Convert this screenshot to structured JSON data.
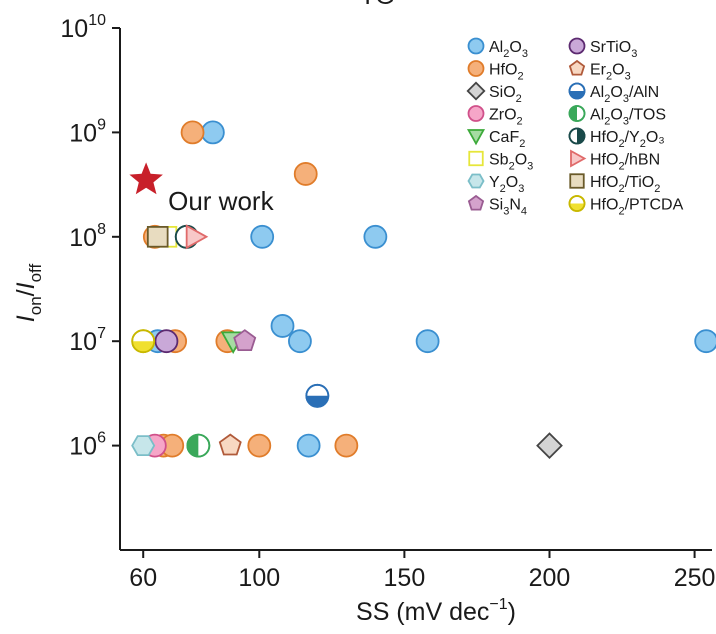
{
  "chart_data": {
    "type": "scatter",
    "title_fragment": "TG",
    "xlabel": "SS (mV dec",
    "xlabel_sup": "−1",
    "xlabel_end": ")",
    "ylabel_main": "I",
    "ylabel_on": "on",
    "ylabel_slash": "/",
    "ylabel_off": "off",
    "x_scale": "linear",
    "y_scale": "log",
    "xlim": [
      52,
      256
    ],
    "ylim_exp": [
      5,
      10
    ],
    "x_ticks": [
      60,
      100,
      150,
      200,
      250
    ],
    "y_ticks": [
      {
        "base": "10",
        "exp": "6",
        "value": 1000000
      },
      {
        "base": "10",
        "exp": "7",
        "value": 10000000
      },
      {
        "base": "10",
        "exp": "8",
        "value": 100000000
      },
      {
        "base": "10",
        "exp": "9",
        "value": 1000000000
      },
      {
        "base": "10",
        "exp": "10",
        "value": 10000000000
      }
    ],
    "grid": false,
    "legend_position": "top-right",
    "annotation": "Our work",
    "highlight": {
      "name": "Our work",
      "marker": "star",
      "color": "#c8202a",
      "x": 61,
      "y": 350000000
    },
    "series": [
      {
        "name": "Al₂O₃",
        "marker": "circle",
        "fill": "#8ecaf0",
        "stroke": "#3a8fd0",
        "points": [
          [
            84,
            1000000000
          ],
          [
            101,
            100000000
          ],
          [
            140,
            100000000
          ],
          [
            108,
            14000000
          ],
          [
            114,
            10000000
          ],
          [
            158,
            10000000
          ],
          [
            254,
            10000000
          ],
          [
            65,
            10000000
          ],
          [
            117,
            1000000
          ]
        ]
      },
      {
        "name": "HfO₂",
        "marker": "circle",
        "fill": "#f5b07a",
        "stroke": "#e07c2a",
        "points": [
          [
            77,
            1000000000
          ],
          [
            116,
            400000000
          ],
          [
            64,
            100000000
          ],
          [
            71,
            10000000
          ],
          [
            89,
            10000000
          ],
          [
            67,
            1000000
          ],
          [
            70,
            1000000
          ],
          [
            100,
            1000000
          ],
          [
            130,
            1000000
          ]
        ]
      },
      {
        "name": "SiO₂",
        "marker": "diamond",
        "fill": "#d4d4d4",
        "stroke": "#444444",
        "points": [
          [
            200,
            1000000
          ]
        ]
      },
      {
        "name": "ZrO₂",
        "marker": "circle",
        "fill": "#f6a6c8",
        "stroke": "#d0508a",
        "points": [
          [
            64,
            1000000
          ]
        ]
      },
      {
        "name": "CaF₂",
        "marker": "triangle-down",
        "fill": "#a6dca2",
        "stroke": "#3daa3a",
        "points": [
          [
            91,
            10000000
          ]
        ]
      },
      {
        "name": "Sb₂O₃",
        "marker": "square",
        "fill": "#ffffff",
        "stroke": "#e6e63a",
        "points": [
          [
            68,
            100000000
          ]
        ]
      },
      {
        "name": "Y₂O₃",
        "marker": "hexagon",
        "fill": "#c6e6ea",
        "stroke": "#7bbec8",
        "points": [
          [
            60,
            1000000
          ]
        ]
      },
      {
        "name": "Si₃N₄",
        "marker": "pentagon",
        "fill": "#d4a2cc",
        "stroke": "#9a5c92",
        "points": [
          [
            95,
            10000000
          ]
        ]
      },
      {
        "name": "SrTiO₃",
        "marker": "circle",
        "fill": "#c9a8d8",
        "stroke": "#5c2a70",
        "points": [
          [
            68,
            10000000
          ]
        ]
      },
      {
        "name": "Er₂O₃",
        "marker": "pentagon",
        "fill": "#f8d8c2",
        "stroke": "#b05a3a",
        "points": [
          [
            90,
            1000000
          ]
        ]
      },
      {
        "name": "Al₂O₃/AlN",
        "marker": "half-circle-bottom",
        "fill": "#2a6fb6",
        "stroke": "#2a6fb6",
        "points": [
          [
            120,
            3000000
          ]
        ]
      },
      {
        "name": "Al₂O₃/TOS",
        "marker": "half-circle-left",
        "fill": "#3aa85a",
        "stroke": "#3aa85a",
        "points": [
          [
            79,
            1000000
          ]
        ]
      },
      {
        "name": "HfO₂/Y₂O₃",
        "marker": "half-circle-right",
        "fill": "#1a4a4a",
        "stroke": "#1a4a4a",
        "points": [
          [
            75,
            100000000
          ]
        ]
      },
      {
        "name": "HfO₂/hBN",
        "marker": "triangle-right",
        "fill": "#f8c8c8",
        "stroke": "#e06a6a",
        "points": [
          [
            78,
            100000000
          ]
        ]
      },
      {
        "name": "HfO₂/TiO₂",
        "marker": "square",
        "fill": "#e8dcc0",
        "stroke": "#6a5a2a",
        "points": [
          [
            65,
            100000000
          ]
        ]
      },
      {
        "name": "HfO₂/PTCDA",
        "marker": "half-circle-bottom-yellow",
        "fill": "#f0e030",
        "stroke": "#c8b800",
        "points": [
          [
            60,
            10000000
          ]
        ]
      }
    ],
    "legend_labels": [
      {
        "base": "Al",
        "sub": "2",
        "mid": "O",
        "sub2": "3",
        "tail": ""
      },
      {
        "base": "HfO",
        "sub": "2",
        "mid": "",
        "sub2": "",
        "tail": ""
      },
      {
        "base": "SiO",
        "sub": "2",
        "mid": "",
        "sub2": "",
        "tail": ""
      },
      {
        "base": "ZrO",
        "sub": "2",
        "mid": "",
        "sub2": "",
        "tail": ""
      },
      {
        "base": "CaF",
        "sub": "2",
        "mid": "",
        "sub2": "",
        "tail": ""
      },
      {
        "base": "Sb",
        "sub": "2",
        "mid": "O",
        "sub2": "3",
        "tail": ""
      },
      {
        "base": "Y",
        "sub": "2",
        "mid": "O",
        "sub2": "3",
        "tail": ""
      },
      {
        "base": "Si",
        "sub": "3",
        "mid": "N",
        "sub2": "4",
        "tail": ""
      },
      {
        "base": "SrTiO",
        "sub": "3",
        "mid": "",
        "sub2": "",
        "tail": ""
      },
      {
        "base": "Er",
        "sub": "2",
        "mid": "O",
        "sub2": "3",
        "tail": ""
      },
      {
        "base": "Al",
        "sub": "2",
        "mid": "O",
        "sub2": "3",
        "tail": "/AlN"
      },
      {
        "base": "Al",
        "sub": "2",
        "mid": "O",
        "sub2": "3",
        "tail": "/TOS"
      },
      {
        "base": "HfO",
        "sub": "2",
        "mid": "/Y",
        "sub2": "2",
        "tail": "O₃"
      },
      {
        "base": "HfO",
        "sub": "2",
        "mid": "/hBN",
        "sub2": "",
        "tail": ""
      },
      {
        "base": "HfO",
        "sub": "2",
        "mid": "/TiO",
        "sub2": "2",
        "tail": ""
      },
      {
        "base": "HfO",
        "sub": "2",
        "mid": "/PTCDA",
        "sub2": "",
        "tail": ""
      }
    ]
  }
}
